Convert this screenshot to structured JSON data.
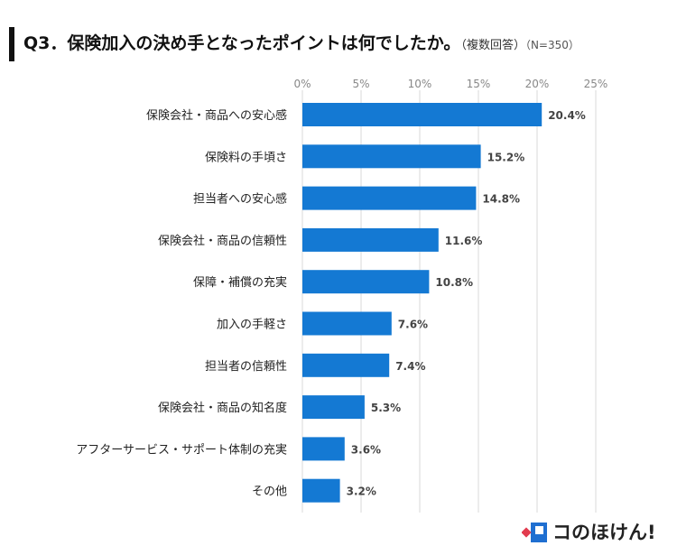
{
  "header": {
    "title_main": "Q3．保険加入の決め手となったポイントは何でしたか。",
    "title_sub": "（複数回答）",
    "title_n": "（N=350）"
  },
  "brand": {
    "name": "コのほけん!"
  },
  "colors": {
    "bar": "#1479d3",
    "grid": "#d9d9d9",
    "tick": "#888888",
    "logo_blue": "#1f6fd1",
    "logo_red": "#e23b4e"
  },
  "chart_data": {
    "type": "bar",
    "orientation": "horizontal",
    "categories": [
      "保険会社・商品への安心感",
      "保険料の手頃さ",
      "担当者への安心感",
      "保険会社・商品の信頼性",
      "保障・補償の充実",
      "加入の手軽さ",
      "担当者の信頼性",
      "保険会社・商品の知名度",
      "アフターサービス・サポート体制の充実",
      "その他"
    ],
    "values": [
      20.4,
      15.2,
      14.8,
      11.6,
      10.8,
      7.6,
      7.4,
      5.3,
      3.6,
      3.2
    ],
    "value_labels": [
      "20.4%",
      "15.2%",
      "14.8%",
      "11.6%",
      "10.8%",
      "7.6%",
      "7.4%",
      "5.3%",
      "3.6%",
      "3.2%"
    ],
    "xticks": [
      0,
      5,
      10,
      15,
      20,
      25
    ],
    "xtick_labels": [
      "0%",
      "5%",
      "10%",
      "15%",
      "20%",
      "25%"
    ],
    "xlim": [
      0,
      25
    ],
    "grid": true,
    "tick_position": "top"
  }
}
